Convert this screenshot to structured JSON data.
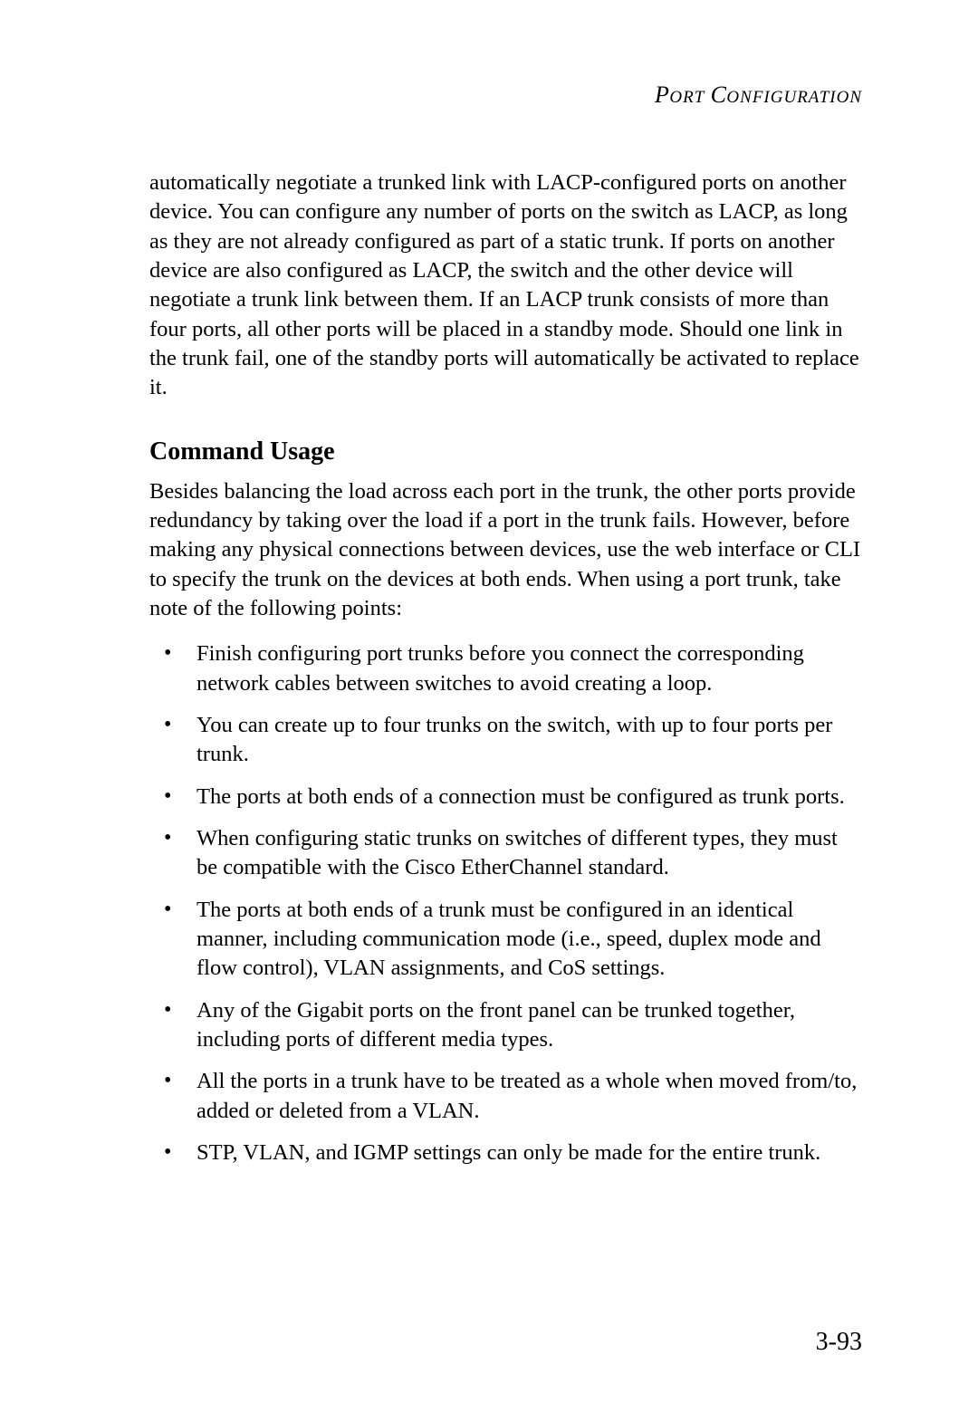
{
  "header": {
    "first_word_initial": "P",
    "first_word_rest": "ORT",
    "second_word_initial": "C",
    "second_word_rest": "ONFIGURATION"
  },
  "intro_paragraph": "automatically negotiate a trunked link with LACP-configured ports on another device. You can configure any number of ports on the switch as LACP, as long as they are not already configured as part of a static trunk. If ports on another device are also configured as LACP, the switch and the other device will negotiate a trunk link between them. If an LACP trunk consists of more than four ports, all other ports will be placed in a standby mode. Should one link in the trunk fail, one of the standby ports will automatically be activated to replace it.",
  "section_heading": "Command Usage",
  "body_paragraph": "Besides balancing the load across each port in the trunk, the other ports provide redundancy by taking over the load if a port in the trunk fails. However, before making any physical connections between devices, use the web interface or CLI to specify the trunk on the devices at both ends. When using a port trunk, take note of the following points:",
  "bullets": [
    "Finish configuring port trunks before you connect the corresponding network cables between switches to avoid creating a loop.",
    "You can create up to four trunks on the switch, with up to four ports per trunk.",
    "The ports at both ends of a connection must be configured as trunk ports.",
    "When configuring static trunks on switches of different types, they must be compatible with the Cisco EtherChannel standard.",
    "The ports at both ends of a trunk must be configured in an identical manner, including communication mode (i.e., speed, duplex mode and flow control), VLAN assignments, and CoS settings.",
    "Any of the Gigabit ports on the front panel can be trunked together, including ports of different media types.",
    "All the ports in a trunk have to be treated as a whole when moved from/to, added or deleted from a VLAN.",
    "STP, VLAN, and IGMP settings can only be made for the entire trunk."
  ],
  "page_number": "3-93"
}
